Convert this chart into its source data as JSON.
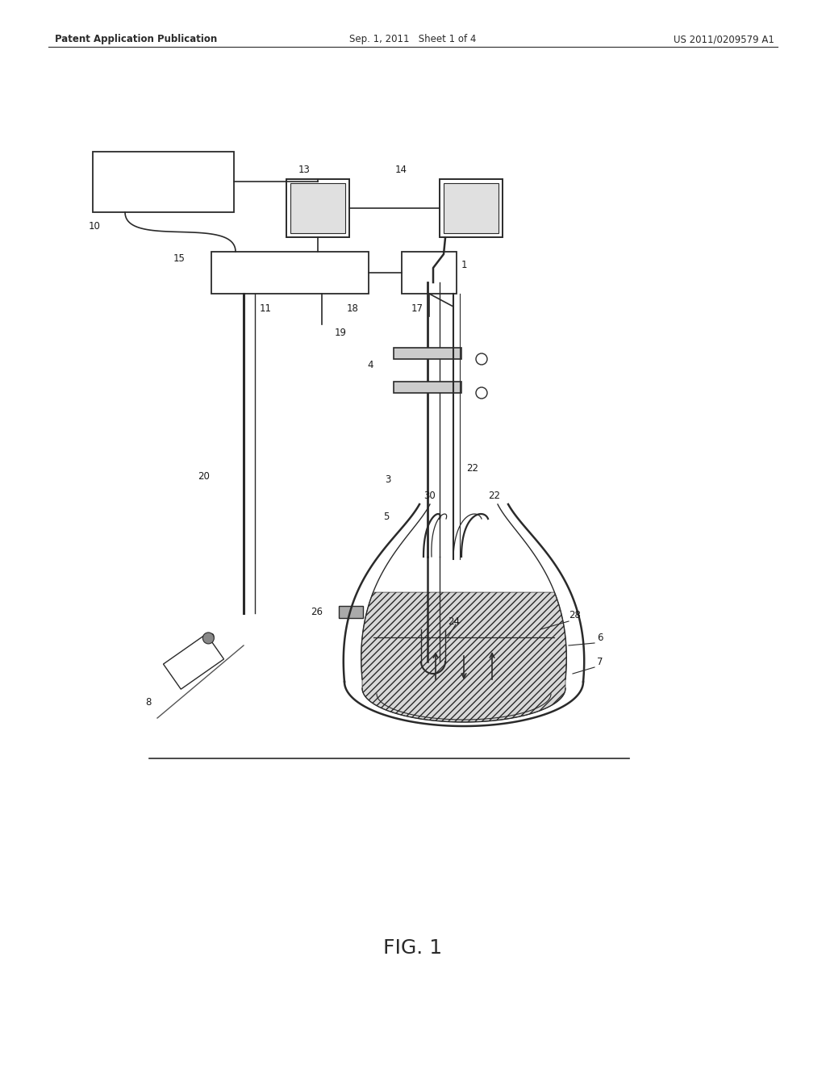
{
  "title": "FIG. 1",
  "header_left": "Patent Application Publication",
  "header_mid": "Sep. 1, 2011   Sheet 1 of 4",
  "header_right": "US 2011/0209579 A1",
  "bg_color": "#ffffff",
  "line_color": "#2a2a2a",
  "label_fontsize": 8.5,
  "header_fontsize": 8.5,
  "title_fontsize": 18
}
